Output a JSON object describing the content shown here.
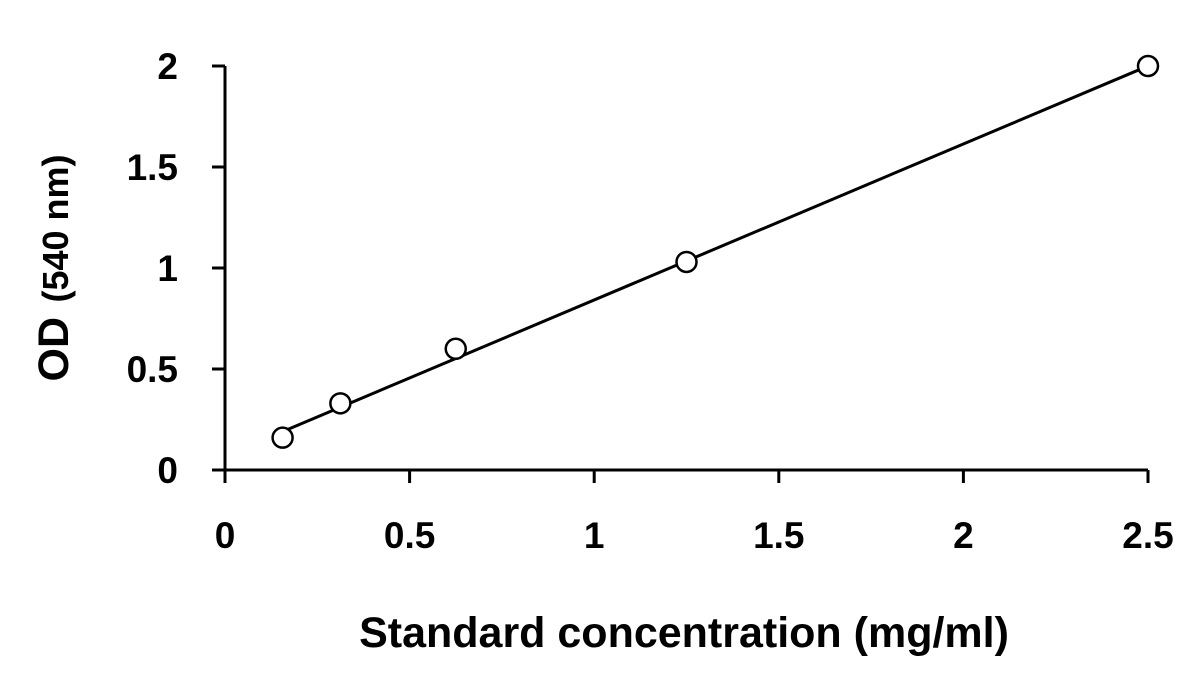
{
  "chart_data": {
    "type": "scatter",
    "title": "",
    "xlabel": "Standard concentration (mg/ml)",
    "ylabel_main": "OD",
    "ylabel_unit": "(540 nm)",
    "xlim": [
      0,
      2.5
    ],
    "ylim": [
      0,
      2
    ],
    "x_ticks": [
      0,
      0.5,
      1,
      1.5,
      2,
      2.5
    ],
    "x_tick_labels": [
      "0",
      "0.5",
      "1",
      "1.5",
      "2",
      "2.5"
    ],
    "y_ticks": [
      0,
      0.5,
      1,
      1.5,
      2
    ],
    "y_tick_labels": [
      "0",
      "0.5",
      "1",
      "1.5",
      "2"
    ],
    "grid": false,
    "legend": "none",
    "marker": "open-circle",
    "series": [
      {
        "x": [
          0.156,
          0.3125,
          0.625,
          1.25,
          2.5
        ],
        "y": [
          0.16,
          0.33,
          0.6,
          1.03,
          2.0
        ]
      }
    ],
    "trendline": {
      "type": "linear",
      "x": [
        0.156,
        2.5
      ],
      "y": [
        0.19,
        2.0
      ]
    },
    "colors": {
      "axis": "#000000",
      "marker_stroke": "#000000",
      "line": "#000000"
    }
  }
}
